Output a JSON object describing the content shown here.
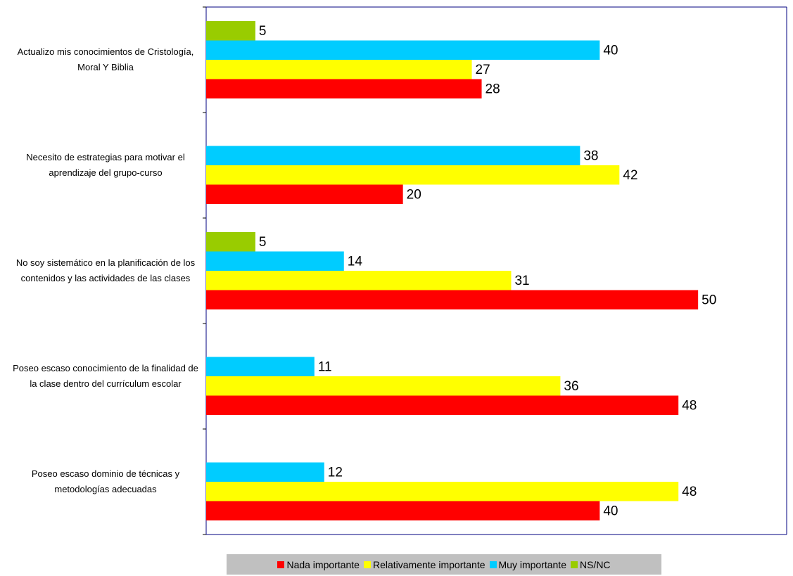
{
  "chart_data": {
    "type": "bar",
    "orientation": "horizontal",
    "categories": [
      "Actualizo mis conocimientos de Cristología, Moral Y Biblia",
      "Necesito de estrategias para motivar el aprendizaje del grupo-curso",
      "No soy sistemático en la planificación de los contenidos y las actividades de las clases",
      "Poseo escaso conocimiento de la finalidad de la clase dentro del currículum escolar",
      "Poseo escaso dominio de técnicas y metodologías adecuadas"
    ],
    "series": [
      {
        "name": "Nada importante",
        "color": "#ff0000",
        "values": [
          28,
          20,
          50,
          48,
          40
        ]
      },
      {
        "name": "Relativamente importante",
        "color": "#ffff00",
        "values": [
          27,
          42,
          31,
          36,
          48
        ]
      },
      {
        "name": "Muy importante",
        "color": "#00ccff",
        "values": [
          40,
          38,
          14,
          11,
          12
        ]
      },
      {
        "name": "NS/NC",
        "color": "#99cc00",
        "values": [
          5,
          null,
          5,
          null,
          null
        ]
      }
    ],
    "xlim": [
      0,
      59
    ],
    "legend": "bottom"
  }
}
